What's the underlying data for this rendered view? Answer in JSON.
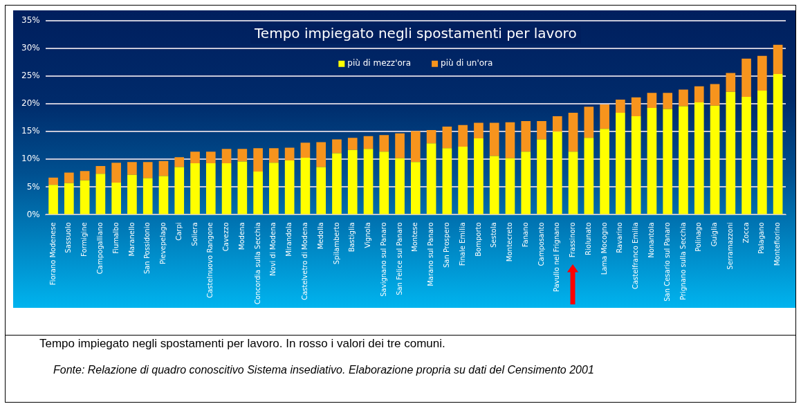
{
  "chart_data": {
    "type": "bar",
    "stacked": true,
    "title": "Tempo impiegato negli spostamenti per lavoro",
    "categories": [
      "Fiorano Modenese",
      "Sassuolo",
      "Formigine",
      "Campogalliano",
      "Fiumalbo",
      "Maranello",
      "San Possidonio",
      "Pievepelago",
      "Carpi",
      "Soliera",
      "Castelnuovo Rangone",
      "Cavezzo",
      "Modena",
      "Concordia sulla Secchia",
      "Novi di Modena",
      "Mirandola",
      "Castelvetro di Modena",
      "Medolla",
      "Spilamberto",
      "Bastiglia",
      "Vignola",
      "Savignano sul Panaro",
      "San Felice sul Panaro",
      "Montese",
      "Marano sul Panaro",
      "San Prospero",
      "Finale Emilia",
      "Bomporto",
      "Sestola",
      "Montecreto",
      "Fanano",
      "Camposanto",
      "Pavullo nel Frignano",
      "Frassinoro",
      "Riolunato",
      "Lama Mocogno",
      "Ravarino",
      "Castelfranco Emilia",
      "Nonantola",
      "San Cesario sul Panaro",
      "Prignano sulla Secchia",
      "Polinago",
      "Guiglia",
      "Serramazzoni",
      "Zocca",
      "Palagano",
      "Montefiorino"
    ],
    "series": [
      {
        "name": "più di mezz'ora",
        "color": "#ffff00",
        "values": [
          5.4,
          5.7,
          6.2,
          7.4,
          5.8,
          7.2,
          6.6,
          7.0,
          8.6,
          9.3,
          9.3,
          9.3,
          9.6,
          7.8,
          9.4,
          9.8,
          10.3,
          8.6,
          11.1,
          11.7,
          11.9,
          11.4,
          10.2,
          9.5,
          12.9,
          12.0,
          12.3,
          13.8,
          10.6,
          10.2,
          11.4,
          13.6,
          15.0,
          11.4,
          13.9,
          15.5,
          18.4,
          17.8,
          19.3,
          19.1,
          19.6,
          20.3,
          19.7,
          22.2,
          21.3,
          22.4,
          25.4
        ]
      },
      {
        "name": "più di un'ora",
        "color": "#f7941d",
        "values": [
          1.3,
          1.9,
          1.7,
          1.4,
          3.6,
          2.3,
          2.9,
          2.7,
          1.8,
          2.1,
          2.1,
          2.6,
          2.3,
          4.2,
          2.6,
          2.3,
          2.7,
          4.5,
          2.5,
          2.2,
          2.3,
          3.0,
          4.5,
          5.6,
          2.4,
          3.9,
          3.9,
          2.8,
          6.0,
          6.5,
          5.5,
          3.3,
          2.8,
          7.0,
          5.6,
          4.4,
          2.4,
          3.4,
          2.7,
          2.9,
          3.0,
          2.9,
          3.9,
          3.4,
          6.9,
          6.3,
          5.3
        ]
      }
    ],
    "ylim": [
      0,
      35
    ],
    "yticks": [
      {
        "value": 0,
        "label": "0%"
      },
      {
        "value": 5,
        "label": "5%"
      },
      {
        "value": 10,
        "label": "10%"
      },
      {
        "value": 15,
        "label": "15%"
      },
      {
        "value": 20,
        "label": "20%"
      },
      {
        "value": 25,
        "label": "25%"
      },
      {
        "value": 30,
        "label": "30%"
      },
      {
        "value": 35,
        "label": "35%"
      }
    ],
    "grid": "y",
    "legend": "top",
    "annotations": [
      "Tempo impiegato negli spostamenti per lavoro. In rosso i valori dei tre comuni.",
      "Fonte: Relazione di quadro conoscitivo Sistema insediativo. Elaborazione propria su dati del Censimento 2001"
    ]
  }
}
